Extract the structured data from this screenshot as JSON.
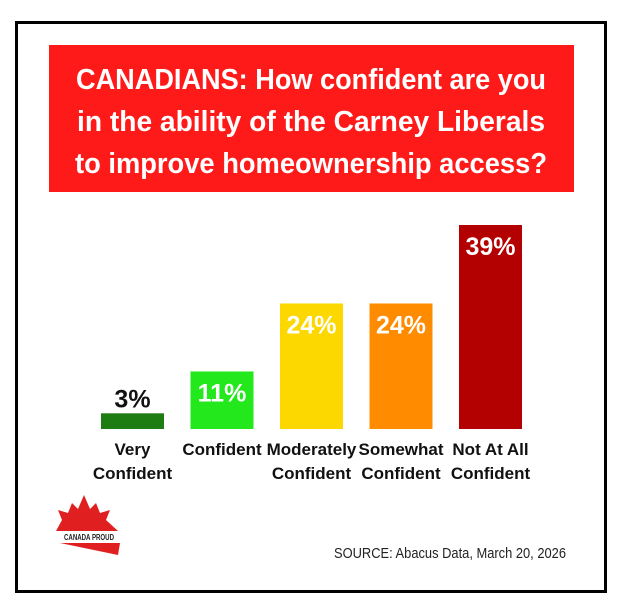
{
  "chart_data": {
    "type": "bar",
    "title_lines": [
      "CANADIANS: How confident are you",
      "in the ability of the Carney Liberals",
      "to improve homeownership access?"
    ],
    "categories": [
      [
        "Very",
        "Confident"
      ],
      [
        "Confident"
      ],
      [
        "Moderately",
        "Confident"
      ],
      [
        "Somewhat",
        "Confident"
      ],
      [
        "Not At All",
        "Confident"
      ]
    ],
    "values": [
      3,
      11,
      24,
      24,
      39
    ],
    "value_labels": [
      "3%",
      "11%",
      "24%",
      "24%",
      "39%"
    ],
    "colors": [
      "#1e7d12",
      "#22e81c",
      "#fcd800",
      "#ff8c00",
      "#b30000"
    ],
    "ylim": [
      0,
      39
    ],
    "grid": false,
    "xlabel": "",
    "ylabel": "",
    "source": "SOURCE: Abacus Data, March 20, 2026"
  },
  "brand": {
    "logo_text": "CANADA PROUD",
    "title_bg": "#ff1a1a"
  }
}
